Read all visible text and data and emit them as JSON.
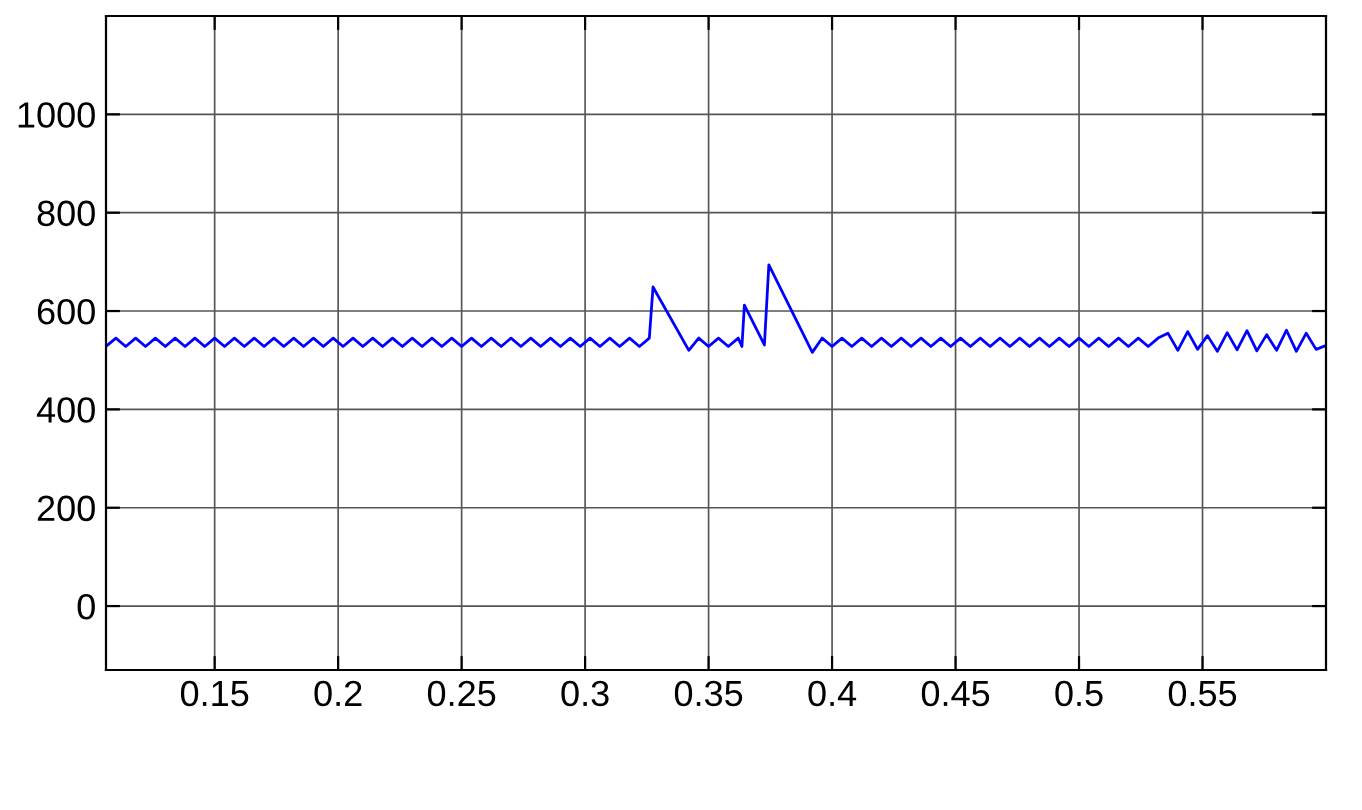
{
  "chart_data": {
    "type": "line",
    "xlim": [
      0.106,
      0.6
    ],
    "ylim": [
      -130,
      1200
    ],
    "xticks": [
      0.15,
      0.2,
      0.25,
      0.3,
      0.35,
      0.4,
      0.45,
      0.5,
      0.55
    ],
    "yticks": [
      0,
      200,
      400,
      600,
      800,
      1000
    ],
    "grid": true,
    "marker": "none",
    "line_style": "solid",
    "series": [
      {
        "color": "#0000ff",
        "x": [
          0.106,
          0.11,
          0.114,
          0.118,
          0.122,
          0.126,
          0.13,
          0.134,
          0.138,
          0.142,
          0.146,
          0.15,
          0.154,
          0.158,
          0.162,
          0.166,
          0.17,
          0.174,
          0.178,
          0.182,
          0.186,
          0.19,
          0.194,
          0.198,
          0.202,
          0.206,
          0.21,
          0.214,
          0.218,
          0.222,
          0.226,
          0.23,
          0.234,
          0.238,
          0.242,
          0.246,
          0.25,
          0.254,
          0.258,
          0.262,
          0.266,
          0.27,
          0.274,
          0.278,
          0.282,
          0.286,
          0.29,
          0.294,
          0.298,
          0.302,
          0.306,
          0.31,
          0.314,
          0.318,
          0.322,
          0.326,
          0.3275,
          0.342,
          0.346,
          0.35,
          0.354,
          0.358,
          0.362,
          0.3635,
          0.3645,
          0.3726,
          0.3744,
          0.392,
          0.396,
          0.4,
          0.404,
          0.408,
          0.412,
          0.416,
          0.42,
          0.424,
          0.428,
          0.432,
          0.436,
          0.44,
          0.444,
          0.448,
          0.452,
          0.456,
          0.46,
          0.464,
          0.468,
          0.472,
          0.476,
          0.48,
          0.484,
          0.488,
          0.492,
          0.496,
          0.5,
          0.504,
          0.508,
          0.512,
          0.516,
          0.52,
          0.524,
          0.528,
          0.532,
          0.536,
          0.54,
          0.544,
          0.548,
          0.552,
          0.556,
          0.56,
          0.564,
          0.568,
          0.572,
          0.576,
          0.58,
          0.584,
          0.588,
          0.592,
          0.596,
          0.6
        ],
        "values": [
          528,
          545,
          528,
          545,
          528,
          545,
          528,
          545,
          528,
          545,
          528,
          545,
          528,
          545,
          528,
          545,
          528,
          545,
          528,
          545,
          528,
          545,
          528,
          545,
          528,
          545,
          528,
          545,
          528,
          545,
          528,
          545,
          528,
          545,
          528,
          545,
          528,
          545,
          528,
          545,
          528,
          545,
          528,
          545,
          528,
          545,
          528,
          545,
          528,
          545,
          528,
          545,
          528,
          545,
          528,
          545,
          649,
          520,
          545,
          528,
          545,
          528,
          545,
          528,
          612,
          531,
          694,
          516,
          545,
          528,
          545,
          528,
          545,
          528,
          545,
          528,
          545,
          528,
          545,
          528,
          545,
          528,
          545,
          528,
          545,
          528,
          545,
          528,
          545,
          528,
          545,
          528,
          545,
          528,
          545,
          528,
          545,
          528,
          545,
          528,
          545,
          528,
          545,
          555,
          520,
          558,
          522,
          550,
          518,
          556,
          521,
          560,
          519,
          552,
          520,
          561,
          518,
          555,
          522,
          530
        ]
      }
    ]
  }
}
